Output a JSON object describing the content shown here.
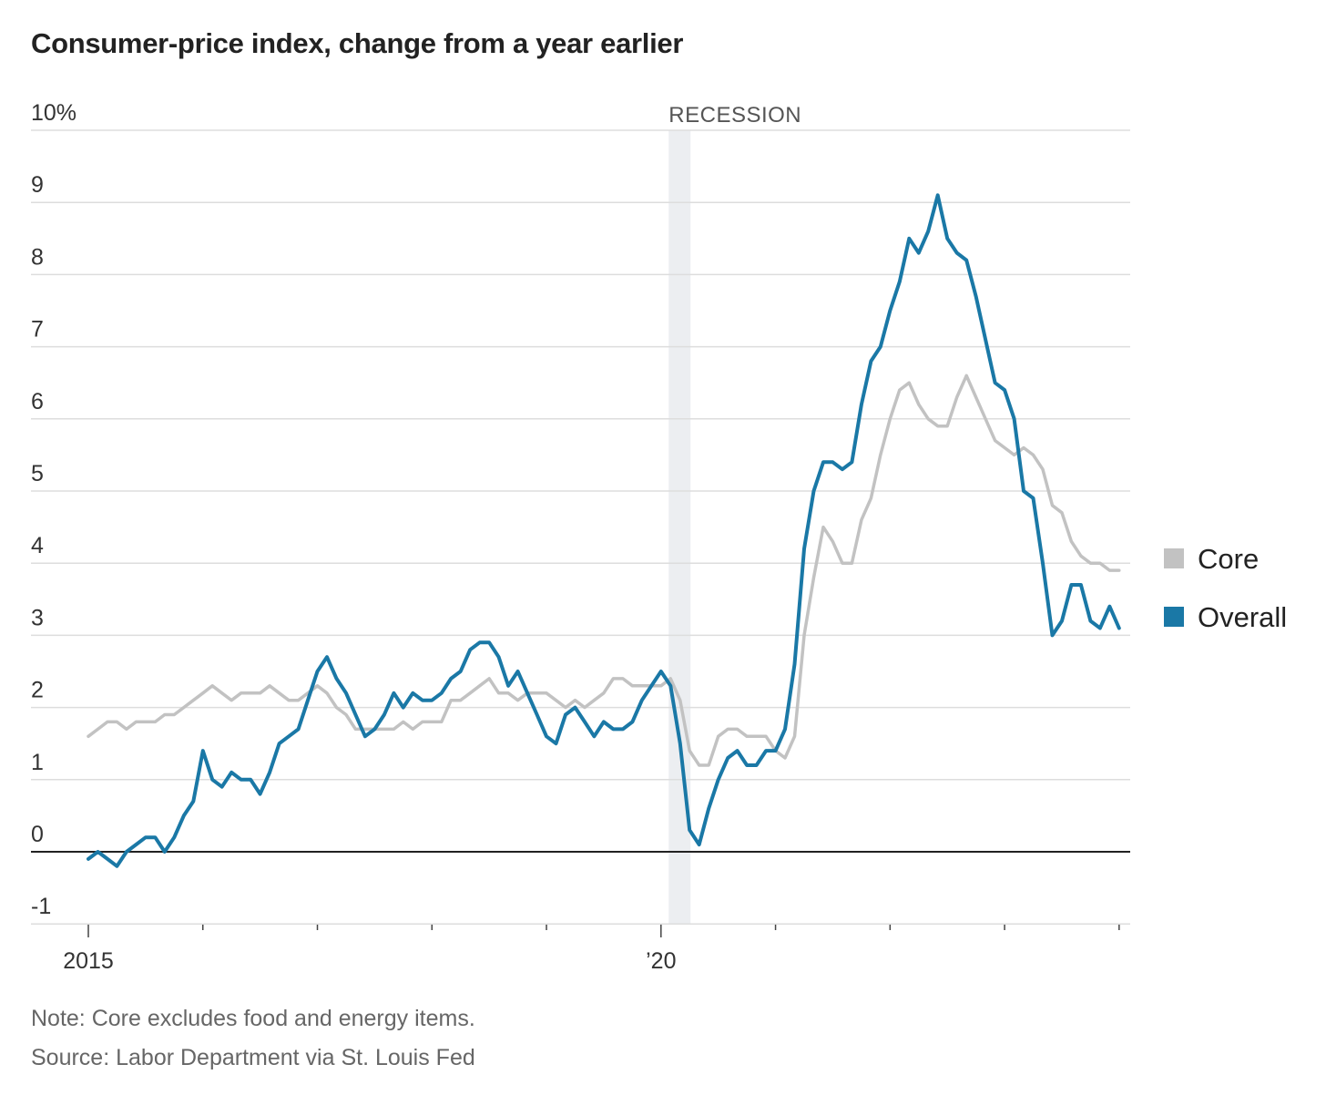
{
  "title": "Consumer-price index, change from a year earlier",
  "note": "Note: Core excludes food and energy items.",
  "source": "Source: Labor Department via St. Louis Fed",
  "colors": {
    "overall": "#1a78a6",
    "core": "#c2c2c2",
    "recession": "#eceef1",
    "grid": "#dddddd",
    "zero": "#222222"
  },
  "chart_data": {
    "type": "line",
    "ylim": [
      -1,
      10
    ],
    "yticks": [
      -1,
      0,
      1,
      2,
      3,
      4,
      5,
      6,
      7,
      8,
      9,
      10
    ],
    "ytick_labels": [
      "-1",
      "0",
      "1",
      "2",
      "3",
      "4",
      "5",
      "6",
      "7",
      "8",
      "9",
      "10%"
    ],
    "xlim": [
      "2015-01",
      "2024-01"
    ],
    "xtick_labels": [
      {
        "date": "2015-01",
        "label": "2015"
      },
      {
        "date": "2020-01",
        "label": "’20"
      }
    ],
    "recession": {
      "label": "RECESSION",
      "start": "2020-02",
      "end": "2020-04"
    },
    "legend_position": "right",
    "x_start": "2015-01",
    "x_step": "1 month",
    "series": [
      {
        "name": "Core",
        "values": [
          1.6,
          1.7,
          1.8,
          1.8,
          1.7,
          1.8,
          1.8,
          1.8,
          1.9,
          1.9,
          2.0,
          2.1,
          2.2,
          2.3,
          2.2,
          2.1,
          2.2,
          2.2,
          2.2,
          2.3,
          2.2,
          2.1,
          2.1,
          2.2,
          2.3,
          2.2,
          2.0,
          1.9,
          1.7,
          1.7,
          1.7,
          1.7,
          1.7,
          1.8,
          1.7,
          1.8,
          1.8,
          1.8,
          2.1,
          2.1,
          2.2,
          2.3,
          2.4,
          2.2,
          2.2,
          2.1,
          2.2,
          2.2,
          2.2,
          2.1,
          2.0,
          2.1,
          2.0,
          2.1,
          2.2,
          2.4,
          2.4,
          2.3,
          2.3,
          2.3,
          2.3,
          2.4,
          2.1,
          1.4,
          1.2,
          1.2,
          1.6,
          1.7,
          1.7,
          1.6,
          1.6,
          1.6,
          1.4,
          1.3,
          1.6,
          3.0,
          3.8,
          4.5,
          4.3,
          4.0,
          4.0,
          4.6,
          4.9,
          5.5,
          6.0,
          6.4,
          6.5,
          6.2,
          6.0,
          5.9,
          5.9,
          6.3,
          6.6,
          6.3,
          6.0,
          5.7,
          5.6,
          5.5,
          5.6,
          5.5,
          5.3,
          4.8,
          4.7,
          4.3,
          4.1,
          4.0,
          4.0,
          3.9,
          3.9
        ]
      },
      {
        "name": "Overall",
        "values": [
          -0.1,
          0.0,
          -0.1,
          -0.2,
          0.0,
          0.1,
          0.2,
          0.2,
          0.0,
          0.2,
          0.5,
          0.7,
          1.4,
          1.0,
          0.9,
          1.1,
          1.0,
          1.0,
          0.8,
          1.1,
          1.5,
          1.6,
          1.7,
          2.1,
          2.5,
          2.7,
          2.4,
          2.2,
          1.9,
          1.6,
          1.7,
          1.9,
          2.2,
          2.0,
          2.2,
          2.1,
          2.1,
          2.2,
          2.4,
          2.5,
          2.8,
          2.9,
          2.9,
          2.7,
          2.3,
          2.5,
          2.2,
          1.9,
          1.6,
          1.5,
          1.9,
          2.0,
          1.8,
          1.6,
          1.8,
          1.7,
          1.7,
          1.8,
          2.1,
          2.3,
          2.5,
          2.3,
          1.5,
          0.3,
          0.1,
          0.6,
          1.0,
          1.3,
          1.4,
          1.2,
          1.2,
          1.4,
          1.4,
          1.7,
          2.6,
          4.2,
          5.0,
          5.4,
          5.4,
          5.3,
          5.4,
          6.2,
          6.8,
          7.0,
          7.5,
          7.9,
          8.5,
          8.3,
          8.6,
          9.1,
          8.5,
          8.3,
          8.2,
          7.7,
          7.1,
          6.5,
          6.4,
          6.0,
          5.0,
          4.9,
          4.0,
          3.0,
          3.2,
          3.7,
          3.7,
          3.2,
          3.1,
          3.4,
          3.1
        ]
      }
    ]
  }
}
